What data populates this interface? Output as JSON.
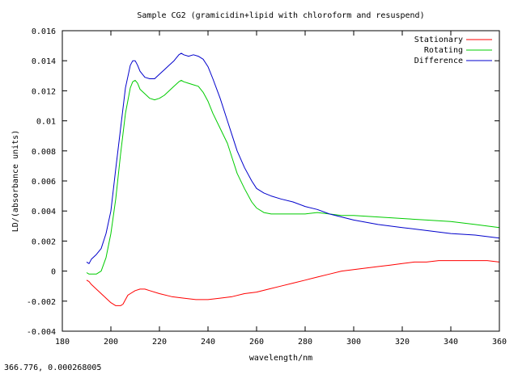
{
  "status_bar": {
    "coordinates": "366.776,  0.000268005"
  },
  "chart_data": {
    "type": "line",
    "title": "Sample CG2 (gramicidin+lipid with chloroform and resuspend)",
    "xlabel": "wavelength/nm",
    "ylabel": "LD/(absorbance units)",
    "xlim": [
      180,
      360
    ],
    "ylim": [
      -0.004,
      0.016
    ],
    "xticks": [
      180,
      200,
      220,
      240,
      260,
      280,
      300,
      320,
      340,
      360
    ],
    "xtick_labels": [
      "180",
      "200",
      "220",
      "240",
      "260",
      "280",
      "300",
      "320",
      "340",
      "360"
    ],
    "yticks": [
      -0.004,
      -0.002,
      0,
      0.002,
      0.004,
      0.006,
      0.008,
      0.01,
      0.012,
      0.014,
      0.016
    ],
    "ytick_labels": [
      "-0.004",
      "-0.002",
      "0",
      "0.002",
      "0.004",
      "0.006",
      "0.008",
      "0.01",
      "0.012",
      "0.014",
      "0.016"
    ],
    "grid": false,
    "legend_position": "top-right",
    "series": [
      {
        "name": "Stationary",
        "color": "#ff0000",
        "x": [
          190,
          191,
          192,
          194,
          196,
          198,
          200,
          202,
          203,
          204,
          205,
          206,
          207,
          208,
          210,
          212,
          214,
          216,
          220,
          225,
          230,
          235,
          240,
          245,
          250,
          255,
          260,
          265,
          270,
          275,
          280,
          285,
          290,
          295,
          300,
          305,
          310,
          315,
          320,
          325,
          330,
          335,
          340,
          345,
          350,
          355,
          360
        ],
        "y": [
          -0.0006,
          -0.0007,
          -0.0009,
          -0.0012,
          -0.0015,
          -0.0018,
          -0.0021,
          -0.0023,
          -0.0023,
          -0.0023,
          -0.0022,
          -0.0019,
          -0.0016,
          -0.0015,
          -0.0013,
          -0.0012,
          -0.0012,
          -0.0013,
          -0.0015,
          -0.0017,
          -0.0018,
          -0.0019,
          -0.0019,
          -0.0018,
          -0.0017,
          -0.0015,
          -0.0014,
          -0.0012,
          -0.001,
          -0.0008,
          -0.0006,
          -0.0004,
          -0.0002,
          0.0,
          0.0001,
          0.0002,
          0.0003,
          0.0004,
          0.0005,
          0.0006,
          0.0006,
          0.0007,
          0.0007,
          0.0007,
          0.0007,
          0.0007,
          0.0006
        ]
      },
      {
        "name": "Rotating",
        "color": "#00cc00",
        "x": [
          190,
          191,
          192,
          194,
          196,
          198,
          200,
          202,
          204,
          206,
          208,
          209,
          210,
          211,
          212,
          214,
          216,
          218,
          220,
          222,
          224,
          226,
          228,
          229,
          230,
          232,
          234,
          236,
          238,
          240,
          242,
          245,
          248,
          250,
          252,
          255,
          258,
          260,
          263,
          266,
          270,
          275,
          280,
          285,
          290,
          295,
          300,
          310,
          320,
          330,
          340,
          350,
          360
        ],
        "y": [
          -0.0001,
          -0.0002,
          -0.0002,
          -0.0002,
          0.0,
          0.0009,
          0.0025,
          0.0048,
          0.0078,
          0.0105,
          0.0122,
          0.0126,
          0.0127,
          0.0125,
          0.0121,
          0.0118,
          0.0115,
          0.0114,
          0.0115,
          0.0117,
          0.012,
          0.0123,
          0.0126,
          0.0127,
          0.0126,
          0.0125,
          0.0124,
          0.0123,
          0.0119,
          0.0113,
          0.0105,
          0.0095,
          0.0085,
          0.0075,
          0.0065,
          0.0055,
          0.0046,
          0.0042,
          0.0039,
          0.0038,
          0.0038,
          0.0038,
          0.0038,
          0.0039,
          0.0038,
          0.0037,
          0.0037,
          0.0036,
          0.0035,
          0.0034,
          0.0033,
          0.0031,
          0.0029
        ]
      },
      {
        "name": "Difference",
        "color": "#0000cc",
        "x": [
          190,
          191,
          192,
          194,
          196,
          198,
          200,
          202,
          204,
          206,
          208,
          209,
          210,
          211,
          212,
          214,
          216,
          218,
          220,
          222,
          224,
          226,
          228,
          229,
          230,
          232,
          234,
          236,
          238,
          240,
          242,
          245,
          248,
          250,
          252,
          255,
          258,
          260,
          263,
          266,
          270,
          275,
          280,
          285,
          290,
          295,
          300,
          310,
          320,
          330,
          340,
          350,
          360
        ],
        "y": [
          0.0006,
          0.0005,
          0.0008,
          0.0011,
          0.0015,
          0.0025,
          0.004,
          0.0068,
          0.0095,
          0.0122,
          0.0137,
          0.014,
          0.014,
          0.0137,
          0.0133,
          0.0129,
          0.0128,
          0.0128,
          0.0131,
          0.0134,
          0.0137,
          0.014,
          0.0144,
          0.0145,
          0.0144,
          0.0143,
          0.0144,
          0.0143,
          0.0141,
          0.0136,
          0.0128,
          0.0115,
          0.01,
          0.009,
          0.008,
          0.0069,
          0.006,
          0.0055,
          0.0052,
          0.005,
          0.0048,
          0.0046,
          0.0043,
          0.0041,
          0.0038,
          0.0036,
          0.0034,
          0.0031,
          0.0029,
          0.0027,
          0.0025,
          0.0024,
          0.0022
        ]
      }
    ]
  }
}
